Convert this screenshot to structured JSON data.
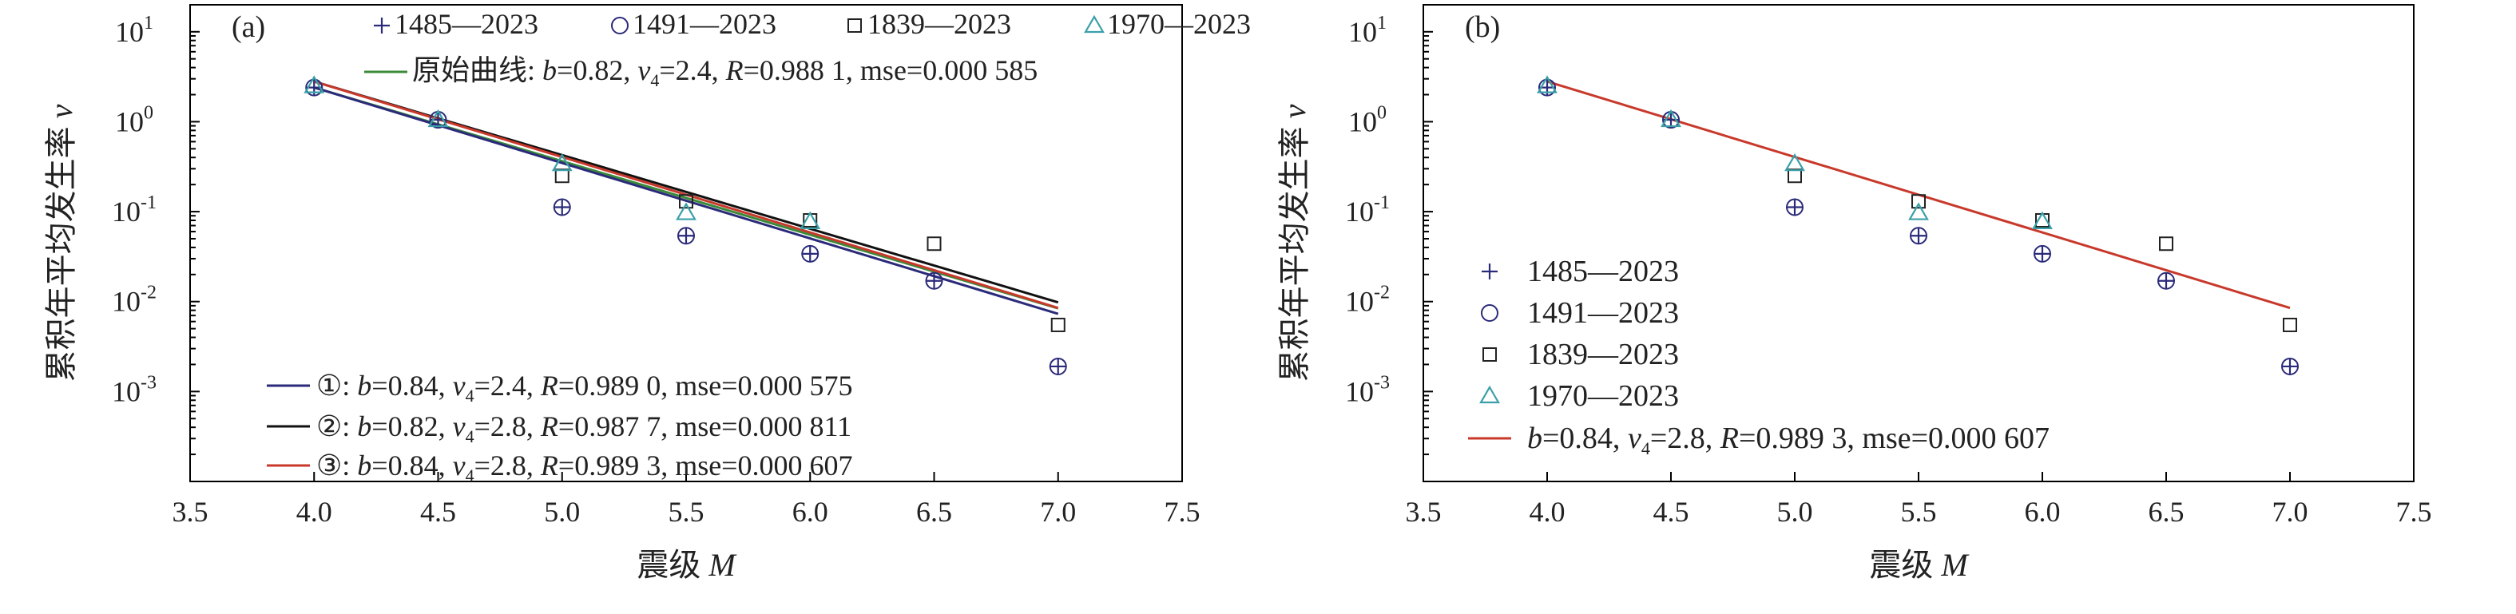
{
  "chart_data": [
    {
      "type": "scatter",
      "panel_label": "(a)",
      "xlabel": "震级 M",
      "ylabel": "累积年平均发生率 v",
      "xlim": [
        3.5,
        7.5
      ],
      "ylim_log10": [
        -4,
        1.3
      ],
      "log_y": true,
      "x_ticks": [
        "3.5",
        "4.0",
        "4.5",
        "5.0",
        "5.5",
        "6.0",
        "6.5",
        "7.0",
        "7.5"
      ],
      "x_tick_values": [
        3.5,
        4.0,
        4.5,
        5.0,
        5.5,
        6.0,
        6.5,
        7.0,
        7.5
      ],
      "y_ticks": [
        {
          "base": "10",
          "exp": "1",
          "value": 10
        },
        {
          "base": "10",
          "exp": "0",
          "value": 1
        },
        {
          "base": "10",
          "exp": "-1",
          "value": 0.1
        },
        {
          "base": "10",
          "exp": "-2",
          "value": 0.01
        },
        {
          "base": "10",
          "exp": "-3",
          "value": 0.001
        }
      ],
      "series": [
        {
          "name": "1485—2023",
          "marker": "plus",
          "color": "#2b2a7a",
          "x": [
            4.0,
            4.5,
            5.0,
            5.5,
            6.0,
            6.5,
            7.0
          ],
          "y": [
            2.4,
            1.05,
            0.112,
            0.054,
            0.034,
            0.017,
            0.0019
          ]
        },
        {
          "name": "1491—2023",
          "marker": "circle",
          "color": "#2b2a7a",
          "x": [
            4.0,
            4.5,
            5.0,
            5.5,
            6.0,
            6.5,
            7.0
          ],
          "y": [
            2.4,
            1.05,
            0.112,
            0.054,
            0.034,
            0.017,
            0.0019
          ]
        },
        {
          "name": "1839—2023",
          "marker": "square",
          "color": "#222222",
          "x": [
            5.0,
            5.5,
            6.0,
            6.5,
            7.0
          ],
          "y": [
            0.25,
            0.13,
            0.08,
            0.044,
            0.0055
          ]
        },
        {
          "name": "1970—2023",
          "marker": "triangle",
          "color": "#3aa0a8",
          "x": [
            4.0,
            4.5,
            5.0,
            5.5,
            6.0
          ],
          "y": [
            2.5,
            1.05,
            0.34,
            0.097,
            0.077
          ]
        }
      ],
      "fit_lines": [
        {
          "id": "original",
          "color": "#3a8a3a",
          "x": [
            4.0,
            7.0
          ],
          "y": [
            2.4,
            0.0084
          ],
          "legend_prefix": "原始曲线: ",
          "b": "0.82",
          "v4": "2.4",
          "R": "0.988 1",
          "mse": "0.000 585"
        },
        {
          "id": "fit1",
          "color": "#2b2a7a",
          "x": [
            4.0,
            7.0
          ],
          "y": [
            2.4,
            0.0073
          ],
          "legend_prefix": "①: ",
          "b": "0.84",
          "v4": "2.4",
          "R": "0.989 0",
          "mse": "0.000 575"
        },
        {
          "id": "fit2",
          "color": "#111111",
          "x": [
            4.0,
            7.0
          ],
          "y": [
            2.8,
            0.0098
          ],
          "legend_prefix": "②: ",
          "b": "0.82",
          "v4": "2.8",
          "R": "0.987 7",
          "mse": "0.000 811"
        },
        {
          "id": "fit3",
          "color": "#c8392b",
          "x": [
            4.0,
            7.0
          ],
          "y": [
            2.8,
            0.0085
          ],
          "legend_prefix": "③: ",
          "b": "0.84",
          "v4": "2.8",
          "R": "0.989 3",
          "mse": "0.000 607"
        }
      ]
    },
    {
      "type": "scatter",
      "panel_label": "(b)",
      "xlabel": "震级 M",
      "ylabel": "累积年平均发生率 v",
      "xlim": [
        3.5,
        7.5
      ],
      "ylim_log10": [
        -4,
        1.3
      ],
      "log_y": true,
      "x_ticks": [
        "3.5",
        "4.0",
        "4.5",
        "5.0",
        "5.5",
        "6.0",
        "6.5",
        "7.0",
        "7.5"
      ],
      "x_tick_values": [
        3.5,
        4.0,
        4.5,
        5.0,
        5.5,
        6.0,
        6.5,
        7.0,
        7.5
      ],
      "y_ticks": [
        {
          "base": "10",
          "exp": "1",
          "value": 10
        },
        {
          "base": "10",
          "exp": "0",
          "value": 1
        },
        {
          "base": "10",
          "exp": "-1",
          "value": 0.1
        },
        {
          "base": "10",
          "exp": "-2",
          "value": 0.01
        },
        {
          "base": "10",
          "exp": "-3",
          "value": 0.001
        }
      ],
      "series": [
        {
          "name": "1485—2023",
          "marker": "plus",
          "color": "#2b2a7a",
          "x": [
            4.0,
            4.5,
            5.0,
            5.5,
            6.0,
            6.5,
            7.0
          ],
          "y": [
            2.4,
            1.05,
            0.112,
            0.054,
            0.034,
            0.017,
            0.0019
          ]
        },
        {
          "name": "1491—2023",
          "marker": "circle",
          "color": "#2b2a7a",
          "x": [
            4.0,
            4.5,
            5.0,
            5.5,
            6.0,
            6.5,
            7.0
          ],
          "y": [
            2.4,
            1.05,
            0.112,
            0.054,
            0.034,
            0.017,
            0.0019
          ]
        },
        {
          "name": "1839—2023",
          "marker": "square",
          "color": "#222222",
          "x": [
            5.0,
            5.5,
            6.0,
            6.5,
            7.0
          ],
          "y": [
            0.25,
            0.13,
            0.08,
            0.044,
            0.0055
          ]
        },
        {
          "name": "1970—2023",
          "marker": "triangle",
          "color": "#3aa0a8",
          "x": [
            4.0,
            4.5,
            5.0,
            5.5,
            6.0
          ],
          "y": [
            2.5,
            1.05,
            0.34,
            0.097,
            0.077
          ]
        }
      ],
      "fit_lines": [
        {
          "id": "fit",
          "color": "#c8392b",
          "x": [
            4.0,
            7.0
          ],
          "y": [
            2.8,
            0.0085
          ],
          "legend_prefix": "",
          "b": "0.84",
          "v4": "2.8",
          "R": "0.989 3",
          "mse": "0.000 607"
        }
      ]
    }
  ]
}
